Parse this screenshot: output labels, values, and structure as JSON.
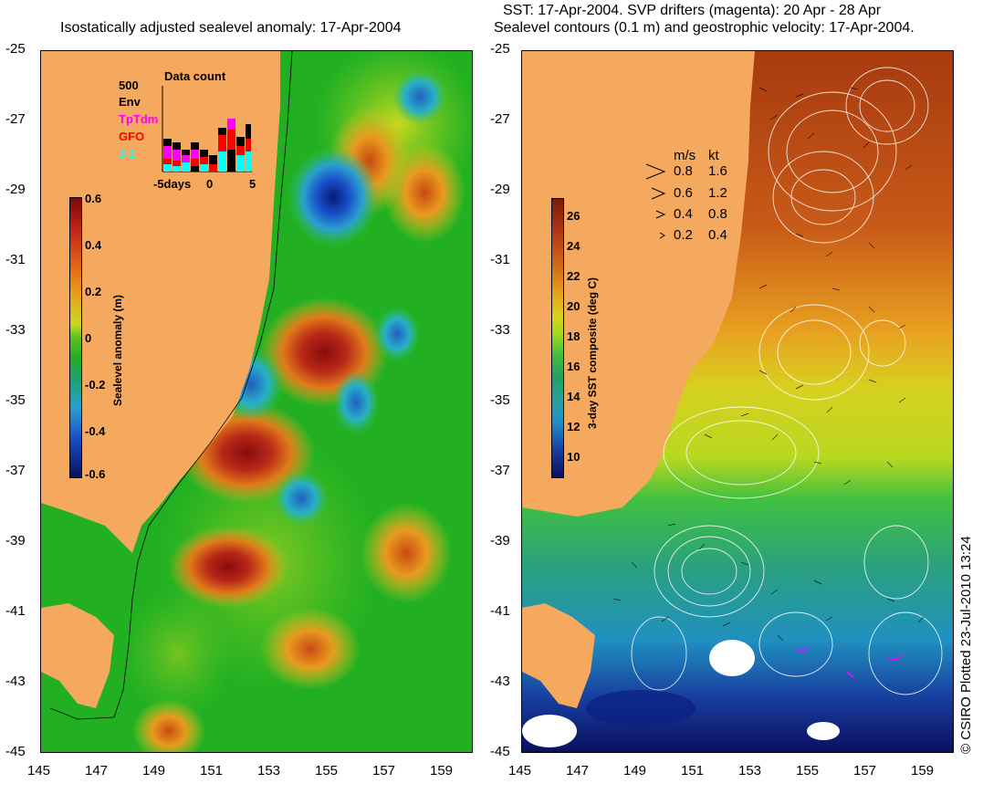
{
  "left_panel": {
    "title": "Isostatically adjusted sealevel anomaly: 17-Apr-2004",
    "colorbar_label": "Sealevel anomaly (m)",
    "colorbar_ticks": [
      "0.6",
      "0.4",
      "0.2",
      "0",
      "-0.2",
      "-0.4",
      "-0.6"
    ],
    "inset": {
      "title": "Data count",
      "ymax_label": "500",
      "series": [
        {
          "name": "Env",
          "color": "#000000"
        },
        {
          "name": "TpTdm",
          "color": "#ff00ff"
        },
        {
          "name": "GFO",
          "color": "#ff0000"
        },
        {
          "name": "J-1",
          "color": "#00ffff"
        }
      ],
      "x_ticks": [
        "-5days",
        "0",
        "5"
      ]
    }
  },
  "right_panel": {
    "title_line1": "SST: 17-Apr-2004. SVP drifters (magenta): 20 Apr - 28 Apr",
    "title_line2": "Sealevel contours (0.1 m) and geostrophic velocity: 17-Apr-2004.",
    "colorbar_label": "3-day SST composite (deg C)",
    "colorbar_ticks": [
      "26",
      "24",
      "22",
      "20",
      "18",
      "16",
      "14",
      "12",
      "10"
    ],
    "velocity_legend": {
      "header_ms": "m/s",
      "header_kt": "kt",
      "rows": [
        {
          "ms": "0.8",
          "kt": "1.6"
        },
        {
          "ms": "0.6",
          "kt": "1.2"
        },
        {
          "ms": "0.4",
          "kt": "0.8"
        },
        {
          "ms": "0.2",
          "kt": "0.4"
        }
      ]
    }
  },
  "lat_ticks": [
    "-25",
    "-27",
    "-29",
    "-31",
    "-33",
    "-35",
    "-37",
    "-39",
    "-41",
    "-43",
    "-45"
  ],
  "lon_ticks": [
    "145",
    "147",
    "149",
    "151",
    "153",
    "155",
    "157",
    "159"
  ],
  "credit": "© CSIRO Plotted 23-Jul-2010 13:24",
  "colors": {
    "land": "#f5a95e",
    "ocean_green": "#22b022",
    "warm_sst": "#b84a14"
  }
}
